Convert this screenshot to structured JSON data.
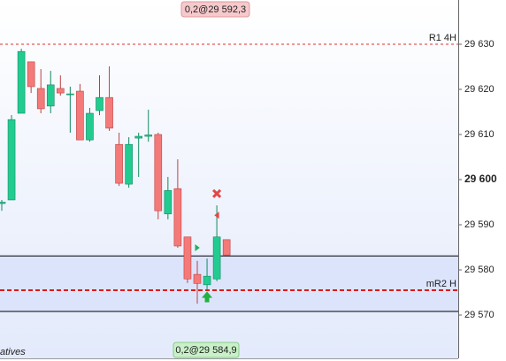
{
  "chart_data": {
    "type": "candlestick",
    "ylim": [
      29560.4,
      29639.8
    ],
    "yticks": [
      {
        "value": 29630,
        "label": "29 630"
      },
      {
        "value": 29620,
        "label": "29 620"
      },
      {
        "value": 29610,
        "label": "29 610"
      },
      {
        "value": 29600,
        "label": "29 600"
      },
      {
        "value": 29590,
        "label": "29 590"
      },
      {
        "value": 29580,
        "label": "29 580"
      },
      {
        "value": 29570,
        "label": "29 570"
      }
    ],
    "bold_tick": 29600,
    "up_color": "#22cc90",
    "down_color": "#f47a7a",
    "candles": [
      {
        "open": 29594.7,
        "high": 29595.5,
        "low": 29593.1,
        "close": 29595.0
      },
      {
        "open": 29595.5,
        "high": 29614.3,
        "low": 29595.5,
        "close": 29613.3
      },
      {
        "open": 29614.7,
        "high": 29629.0,
        "low": 29614.7,
        "close": 29628.4
      },
      {
        "open": 29626.1,
        "high": 29626.1,
        "low": 29619.2,
        "close": 29620.6
      },
      {
        "open": 29620.2,
        "high": 29624.5,
        "low": 29614.7,
        "close": 29615.7
      },
      {
        "open": 29616.3,
        "high": 29624.1,
        "low": 29614.7,
        "close": 29621.0
      },
      {
        "open": 29620.2,
        "high": 29623.1,
        "low": 29618.6,
        "close": 29619.2
      },
      {
        "open": 29618.8,
        "high": 29620.6,
        "low": 29610.4,
        "close": 29619.0
      },
      {
        "open": 29619.6,
        "high": 29621.2,
        "low": 29608.8,
        "close": 29608.8
      },
      {
        "open": 29608.8,
        "high": 29615.9,
        "low": 29608.4,
        "close": 29614.7
      },
      {
        "open": 29615.3,
        "high": 29623.1,
        "low": 29614.3,
        "close": 29618.2
      },
      {
        "open": 29618.2,
        "high": 29625.1,
        "low": 29610.8,
        "close": 29611.4
      },
      {
        "open": 29607.8,
        "high": 29610.4,
        "low": 29598.6,
        "close": 29599.2
      },
      {
        "open": 29599.0,
        "high": 29609.4,
        "low": 29598.2,
        "close": 29607.8
      },
      {
        "open": 29609.2,
        "high": 29610.4,
        "low": 29600.6,
        "close": 29609.6
      },
      {
        "open": 29609.6,
        "high": 29615.5,
        "low": 29608.4,
        "close": 29609.9
      },
      {
        "open": 29610.0,
        "high": 29610.4,
        "low": 29591.2,
        "close": 29593.1
      },
      {
        "open": 29592.4,
        "high": 29600.6,
        "low": 29591.2,
        "close": 29597.6
      },
      {
        "open": 29598.0,
        "high": 29604.5,
        "low": 29584.9,
        "close": 29585.3
      },
      {
        "open": 29587.3,
        "high": 29587.3,
        "low": 29577.1,
        "close": 29578.0
      },
      {
        "open": 29579.0,
        "high": 29582.0,
        "low": 29572.5,
        "close": 29577.0
      },
      {
        "open": 29576.7,
        "high": 29582.5,
        "low": 29575.7,
        "close": 29578.6
      },
      {
        "open": 29578.0,
        "high": 29594.3,
        "low": 29577.5,
        "close": 29587.3
      },
      {
        "open": 29586.7,
        "high": 29586.7,
        "low": 29583.3,
        "close": 29583.3
      }
    ],
    "zone": {
      "from": 29570.8,
      "to": 29583.1,
      "color": "#dbe4fb"
    },
    "levels": [
      {
        "label": "R1 4H",
        "value": 29630,
        "color": "#e03030",
        "width": 1
      },
      {
        "label": "mR2 H",
        "value": 29575.5,
        "color": "#e01818",
        "width": 2
      }
    ],
    "markers": [
      {
        "candle": 22,
        "value": 29596.9,
        "shape": "cross",
        "color": "#e04848"
      },
      {
        "candle": 22,
        "value": 29592.1,
        "shape": "triangle-left",
        "color": "#e04848"
      },
      {
        "candle": 20,
        "value": 29584.9,
        "shape": "triangle-right",
        "color": "#22b060"
      },
      {
        "candle": 21,
        "value": 29573.9,
        "shape": "arrow-up",
        "color": "#22b040"
      }
    ],
    "top_label": "0,2@29 592,3",
    "bottom_label": "0,2@29 584,9",
    "corner_text": "atives"
  }
}
